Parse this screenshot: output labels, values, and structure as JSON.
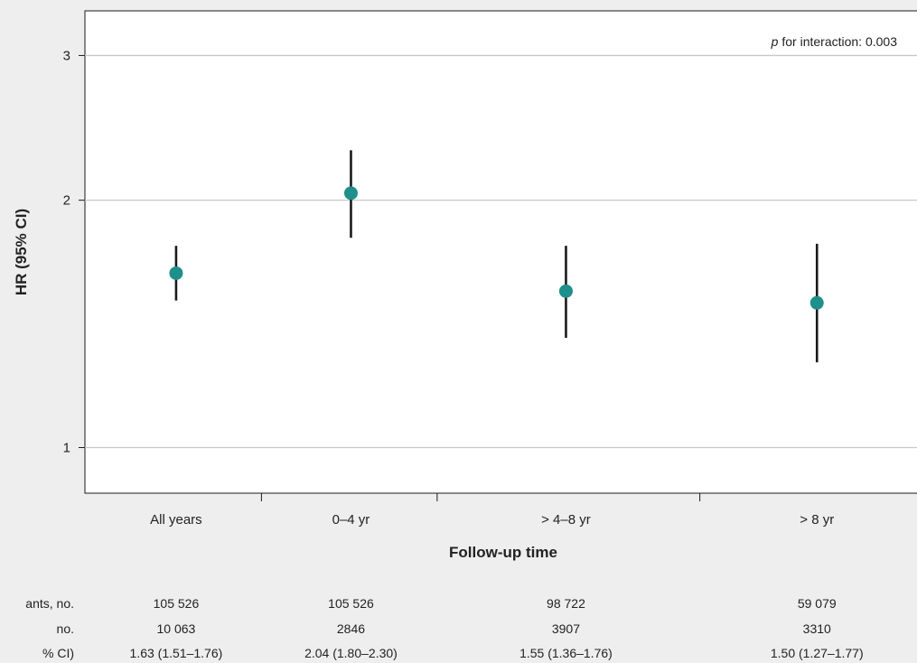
{
  "chart_data": {
    "type": "scatter",
    "title": "",
    "xlabel": "Follow-up time",
    "ylabel": "HR (95% CI)",
    "y_scale": "log",
    "ylim": [
      0.88,
      3.4
    ],
    "y_ticks": [
      "1",
      "2",
      "3"
    ],
    "y_tick_values": [
      1,
      2,
      3
    ],
    "grid": "horizontal",
    "categories": [
      "All years",
      "0–4 yr",
      "> 4–8 yr",
      "> 8 yr"
    ],
    "series": [
      {
        "values": [
          1.63,
          2.04,
          1.55,
          1.5
        ],
        "ci_low": [
          1.51,
          1.8,
          1.36,
          1.27
        ],
        "ci_high": [
          1.76,
          2.3,
          1.76,
          1.77
        ],
        "color": "#1e8f8a"
      }
    ],
    "annotation": {
      "italic": "p",
      "text": " for interaction: 0.003",
      "position": "top-right"
    },
    "table": {
      "rows": [
        {
          "label": "ants, no.",
          "values": [
            "105 526",
            "105 526",
            "98 722",
            "59 079"
          ]
        },
        {
          "label": "no.",
          "values": [
            "10 063",
            "2846",
            "3907",
            "3310"
          ]
        },
        {
          "label": "% CI)",
          "values": [
            "1.63 (1.51–1.76)",
            "2.04 (1.80–2.30)",
            "1.55 (1.36–1.76)",
            "1.50 (1.27–1.77)"
          ]
        }
      ]
    },
    "colors": {
      "marker": "#1e8f8a",
      "errorbar": "#1a1a1a",
      "gridline": "#c8c8c8",
      "plot_bg": "#ffffff",
      "page_bg": "#eeeeee"
    }
  }
}
